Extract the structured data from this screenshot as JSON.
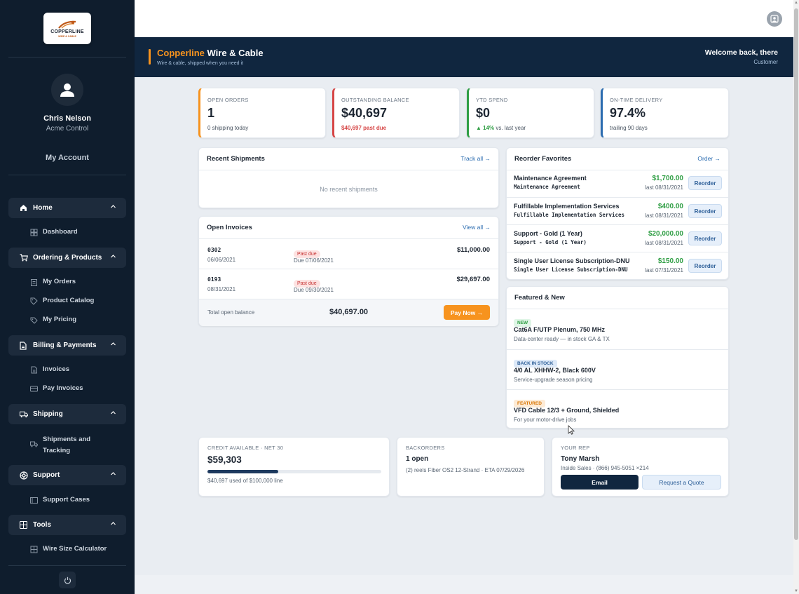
{
  "brand": {
    "logo_text": "COPPERLINE",
    "logo_subtext": "WIRE & CABLE",
    "name_part1": "Copperline",
    "name_part2": " Wire & Cable",
    "tagline": "Wire & cable, shipped when you need it",
    "accent_color": "#f7931e"
  },
  "user": {
    "name": "Chris Nelson",
    "company": "Acme Control",
    "account_link": "My Account"
  },
  "header": {
    "welcome": "Welcome back, there",
    "role": "Customer"
  },
  "nav": {
    "sections": [
      {
        "label": "Home",
        "icon": "home-icon",
        "items": [
          {
            "label": "Dashboard",
            "icon": "dashboard-icon"
          }
        ]
      },
      {
        "label": "Ordering & Products",
        "icon": "cart-icon",
        "items": [
          {
            "label": "My Orders",
            "icon": "clipboard-icon"
          },
          {
            "label": "Product Catalog",
            "icon": "tag-icon"
          },
          {
            "label": "My Pricing",
            "icon": "price-tag-icon"
          }
        ]
      },
      {
        "label": "Billing & Payments",
        "icon": "document-icon",
        "items": [
          {
            "label": "Invoices",
            "icon": "file-icon"
          },
          {
            "label": "Pay Invoices",
            "icon": "credit-card-icon"
          }
        ]
      },
      {
        "label": "Shipping",
        "icon": "truck-icon",
        "items": [
          {
            "label": "Shipments and",
            "label2": "Tracking",
            "icon": "truck-small-icon"
          }
        ]
      },
      {
        "label": "Support",
        "icon": "lifebuoy-icon",
        "items": [
          {
            "label": "Support Cases",
            "icon": "support-case-icon"
          }
        ]
      },
      {
        "label": "Tools",
        "icon": "calculator-icon",
        "items": [
          {
            "label": "Wire Size Calculator",
            "icon": "calculator-small-icon"
          }
        ]
      }
    ]
  },
  "kpis": [
    {
      "label": "OPEN ORDERS",
      "value": "1",
      "sub": "0 shipping today",
      "color": "#f7931e"
    },
    {
      "label": "OUTSTANDING BALANCE",
      "value": "$40,697",
      "sub": "$40,697 past due",
      "color": "#d64545"
    },
    {
      "label": "YTD SPEND",
      "value": "$0",
      "sub_up": "▲ 14%",
      "sub": " vs. last year",
      "color": "#2f9e44"
    },
    {
      "label": "ON-TIME DELIVERY",
      "value": "97.4%",
      "sub": "trailing 90 days",
      "color": "#2b6cb0"
    }
  ],
  "shipments": {
    "title": "Recent Shipments",
    "link": "Track all →",
    "empty": "No recent shipments"
  },
  "invoices": {
    "title": "Open Invoices",
    "link": "View all →",
    "rows": [
      {
        "number": "0302",
        "date": "06/06/2021",
        "status": "Past due",
        "due": "Due 07/06/2021",
        "amount": "$11,000.00"
      },
      {
        "number": "0193",
        "date": "08/31/2021",
        "status": "Past due",
        "due": "Due 09/30/2021",
        "amount": "$29,697.00"
      }
    ],
    "total_label": "Total open balance",
    "total": "$40,697.00",
    "pay_button": "Pay Now →"
  },
  "reorder": {
    "title": "Reorder Favorites",
    "link": "Order →",
    "button": "Reorder",
    "items": [
      {
        "name": "Maintenance Agreement",
        "sku": "Maintenance Agreement",
        "price": "$1,700.00",
        "last": "last 08/31/2021"
      },
      {
        "name": "Fulfillable Implementation Services",
        "sku": "Fulfillable Implementation Services",
        "price": "$400.00",
        "last": "last 08/31/2021"
      },
      {
        "name": "Support - Gold (1 Year)",
        "sku": "Support - Gold (1 Year)",
        "price": "$20,000.00",
        "last": "last 08/31/2021"
      },
      {
        "name": "Single User License Subscription-DNU",
        "sku": "Single User License Subscription-DNU",
        "price": "$150.00",
        "last": "last 07/31/2021"
      }
    ]
  },
  "featured": {
    "title": "Featured & New",
    "items": [
      {
        "badge": "NEW",
        "name": "Cat6A F/UTP Plenum, 750 MHz",
        "desc": "Data-center ready — in stock GA & TX",
        "badge_bg": "#dff5e6",
        "badge_fg": "#2f9e44"
      },
      {
        "badge": "BACK IN STOCK",
        "name": "4/0 AL XHHW-2, Black 600V",
        "desc": "Service-upgrade season pricing",
        "badge_bg": "#dde9f8",
        "badge_fg": "#2b5d97"
      },
      {
        "badge": "FEATURED",
        "name": "VFD Cable 12/3 + Ground, Shielded",
        "desc": "For your motor-drive jobs",
        "badge_bg": "#fdebd6",
        "badge_fg": "#d97706"
      }
    ]
  },
  "credit": {
    "label": "CREDIT AVAILABLE · NET 30",
    "value": "$59,303",
    "used_fraction": 0.407,
    "sub": "$40,697 used of $100,000 line"
  },
  "backorders": {
    "label": "BACKORDERS",
    "value": "1 open",
    "detail": "(2) reels Fiber OS2 12-Strand · ETA 07/29/2026"
  },
  "rep": {
    "label": "YOUR REP",
    "name": "Tony Marsh",
    "detail": "Inside Sales · (866) 945-5051 ×214",
    "email_button": "Email",
    "quote_button": "Request a Quote"
  }
}
